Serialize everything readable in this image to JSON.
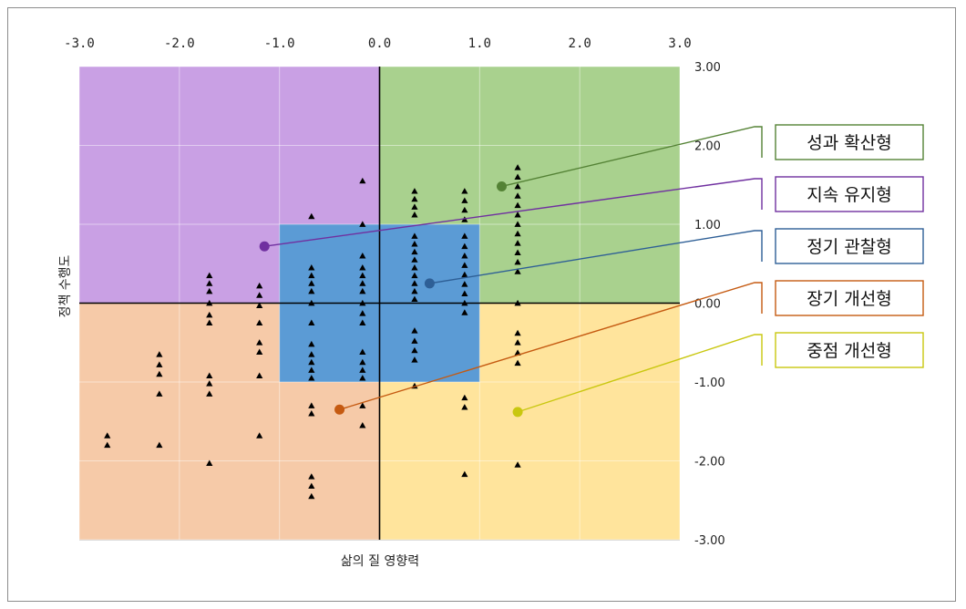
{
  "chart_data": {
    "type": "scatter",
    "xlabel": "삶의 질 영향력",
    "ylabel": "정책 수행도",
    "xlim": [
      -3.0,
      3.0
    ],
    "ylim": [
      -3.0,
      3.0
    ],
    "x_ticks": [
      "-3.0",
      "-2.0",
      "-1.0",
      "0.0",
      "1.0",
      "2.0",
      "3.0"
    ],
    "x_tick_values": [
      -3,
      -2,
      -1,
      0,
      1,
      2,
      3
    ],
    "x_axis_position": "top",
    "y_ticks": [
      "3.00",
      "2.00",
      "1.00",
      "0.00",
      "-1.00",
      "-2.00",
      "-3.00"
    ],
    "y_tick_values": [
      3,
      2,
      1,
      0,
      -1,
      -2,
      -3
    ],
    "y_axis_position": "right",
    "grid": true,
    "regions": [
      {
        "name": "top-left",
        "x": [
          -3,
          0
        ],
        "y": [
          0,
          3
        ],
        "color": "#c9a0e4"
      },
      {
        "name": "top-right",
        "x": [
          0,
          3
        ],
        "y": [
          0,
          3
        ],
        "color": "#a9d18e"
      },
      {
        "name": "bottom-left",
        "x": [
          -3,
          0
        ],
        "y": [
          -3,
          0
        ],
        "color": "#f6caa8"
      },
      {
        "name": "bottom-right",
        "x": [
          0,
          3
        ],
        "y": [
          -3,
          0
        ],
        "color": "#ffe49c"
      },
      {
        "name": "center",
        "x": [
          -1,
          1
        ],
        "y": [
          -1,
          1
        ],
        "color": "#5b9bd5"
      }
    ],
    "points": [
      [
        -2.72,
        -1.68
      ],
      [
        -2.72,
        -1.8
      ],
      [
        -2.2,
        -0.65
      ],
      [
        -2.2,
        -0.78
      ],
      [
        -2.2,
        -0.9
      ],
      [
        -2.2,
        -1.15
      ],
      [
        -2.2,
        -1.8
      ],
      [
        -1.7,
        0.35
      ],
      [
        -1.7,
        0.25
      ],
      [
        -1.7,
        0.15
      ],
      [
        -1.7,
        0.0
      ],
      [
        -1.7,
        -0.15
      ],
      [
        -1.7,
        -0.25
      ],
      [
        -1.7,
        -0.92
      ],
      [
        -1.7,
        -1.02
      ],
      [
        -1.7,
        -1.15
      ],
      [
        -1.7,
        -2.03
      ],
      [
        -1.2,
        0.22
      ],
      [
        -1.2,
        0.1
      ],
      [
        -1.2,
        -0.03
      ],
      [
        -1.2,
        -0.25
      ],
      [
        -1.2,
        -0.5
      ],
      [
        -1.2,
        -0.62
      ],
      [
        -1.2,
        -0.92
      ],
      [
        -1.2,
        -1.68
      ],
      [
        -0.68,
        1.1
      ],
      [
        -0.68,
        0.45
      ],
      [
        -0.68,
        0.35
      ],
      [
        -0.68,
        0.25
      ],
      [
        -0.68,
        0.15
      ],
      [
        -0.68,
        0.0
      ],
      [
        -0.68,
        -0.25
      ],
      [
        -0.68,
        -0.52
      ],
      [
        -0.68,
        -0.65
      ],
      [
        -0.68,
        -0.75
      ],
      [
        -0.68,
        -0.85
      ],
      [
        -0.68,
        -0.95
      ],
      [
        -0.68,
        -1.3
      ],
      [
        -0.68,
        -1.4
      ],
      [
        -0.68,
        -2.2
      ],
      [
        -0.68,
        -2.32
      ],
      [
        -0.68,
        -2.45
      ],
      [
        -0.17,
        1.55
      ],
      [
        -0.17,
        1.0
      ],
      [
        -0.17,
        0.6
      ],
      [
        -0.17,
        0.45
      ],
      [
        -0.17,
        0.35
      ],
      [
        -0.17,
        0.25
      ],
      [
        -0.17,
        0.15
      ],
      [
        -0.17,
        0.0
      ],
      [
        -0.17,
        -0.13
      ],
      [
        -0.17,
        -0.25
      ],
      [
        -0.17,
        -0.62
      ],
      [
        -0.17,
        -0.75
      ],
      [
        -0.17,
        -0.85
      ],
      [
        -0.17,
        -0.95
      ],
      [
        -0.17,
        -1.3
      ],
      [
        -0.17,
        -1.55
      ],
      [
        0.35,
        1.42
      ],
      [
        0.35,
        1.32
      ],
      [
        0.35,
        1.22
      ],
      [
        0.35,
        1.12
      ],
      [
        0.35,
        0.85
      ],
      [
        0.35,
        0.75
      ],
      [
        0.35,
        0.65
      ],
      [
        0.35,
        0.55
      ],
      [
        0.35,
        0.45
      ],
      [
        0.35,
        0.35
      ],
      [
        0.35,
        0.25
      ],
      [
        0.35,
        0.15
      ],
      [
        0.35,
        0.05
      ],
      [
        0.35,
        -0.35
      ],
      [
        0.35,
        -0.48
      ],
      [
        0.35,
        -0.6
      ],
      [
        0.35,
        -0.72
      ],
      [
        0.35,
        -1.05
      ],
      [
        0.85,
        1.42
      ],
      [
        0.85,
        1.3
      ],
      [
        0.85,
        1.18
      ],
      [
        0.85,
        1.06
      ],
      [
        0.85,
        0.85
      ],
      [
        0.85,
        0.72
      ],
      [
        0.85,
        0.6
      ],
      [
        0.85,
        0.48
      ],
      [
        0.85,
        0.36
      ],
      [
        0.85,
        0.24
      ],
      [
        0.85,
        0.12
      ],
      [
        0.85,
        0.0
      ],
      [
        0.85,
        -0.12
      ],
      [
        0.85,
        -1.2
      ],
      [
        0.85,
        -1.32
      ],
      [
        0.85,
        -2.17
      ],
      [
        1.38,
        1.72
      ],
      [
        1.38,
        1.6
      ],
      [
        1.38,
        1.48
      ],
      [
        1.38,
        1.36
      ],
      [
        1.38,
        1.24
      ],
      [
        1.38,
        1.12
      ],
      [
        1.38,
        1.0
      ],
      [
        1.38,
        0.88
      ],
      [
        1.38,
        0.76
      ],
      [
        1.38,
        0.64
      ],
      [
        1.38,
        0.52
      ],
      [
        1.38,
        0.4
      ],
      [
        1.38,
        0.0
      ],
      [
        1.38,
        -0.38
      ],
      [
        1.38,
        -0.5
      ],
      [
        1.38,
        -0.63
      ],
      [
        1.38,
        -0.76
      ],
      [
        1.38,
        -2.05
      ]
    ],
    "callouts": [
      {
        "label": "성과 확산형",
        "point": [
          1.22,
          1.48
        ],
        "color": "#548235"
      },
      {
        "label": "지속 유지형",
        "point": [
          -1.15,
          0.72
        ],
        "color": "#7030a0"
      },
      {
        "label": "정기 관찰형",
        "point": [
          0.5,
          0.25
        ],
        "color": "#2e5f96"
      },
      {
        "label": "장기 개선형",
        "point": [
          -0.4,
          -1.35
        ],
        "color": "#c55a11"
      },
      {
        "label": "중점 개선형",
        "point": [
          1.38,
          -1.38
        ],
        "color": "#c9c70f"
      }
    ]
  }
}
